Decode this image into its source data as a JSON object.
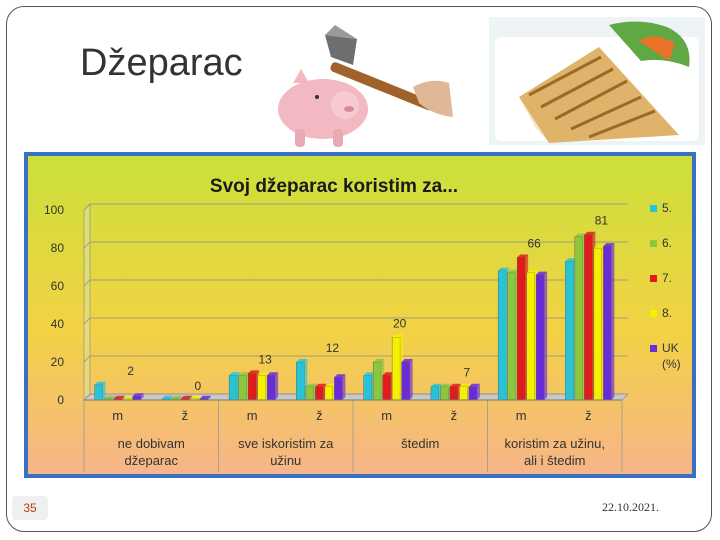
{
  "slide": {
    "title": "Džeparac",
    "slide_number": "35",
    "date": "22.10.2021."
  },
  "colors": {
    "chart_bg_top": "#cbe03a",
    "chart_bg_bottom": "#f7b48a",
    "chart_border": "#3b6fc4",
    "series": [
      "#27c4d8",
      "#8cc63f",
      "#e11b1b",
      "#f4f000",
      "#6a2bd9"
    ]
  },
  "chart_data": {
    "type": "bar",
    "title": "Svoj džeparac koristim za...",
    "ylim": [
      0,
      100
    ],
    "yticks": [
      0,
      20,
      40,
      60,
      80,
      100
    ],
    "grid": true,
    "legend_position": "right",
    "groups": [
      "ne dobivam džeparac",
      "sve iskoristim za užinu",
      "štedim",
      "koristim za užinu, ali i štedim"
    ],
    "categories": [
      "m",
      "ž",
      "m",
      "ž",
      "m",
      "ž",
      "m",
      "ž"
    ],
    "series": [
      {
        "name": "5.",
        "values": [
          8,
          0,
          13,
          20,
          13,
          7,
          68,
          73
        ]
      },
      {
        "name": "6.",
        "values": [
          0,
          0,
          13,
          7,
          20,
          7,
          67,
          86
        ]
      },
      {
        "name": "7.",
        "values": [
          0,
          0,
          14,
          7,
          13,
          7,
          75,
          87
        ]
      },
      {
        "name": "8.",
        "values": [
          0,
          0,
          13,
          7,
          33,
          7,
          67,
          80
        ]
      },
      {
        "name": "UK (%)",
        "values": [
          2,
          0,
          13,
          12,
          20,
          7,
          66,
          81
        ]
      }
    ],
    "data_labels": [
      {
        "category_index": 0,
        "text": "2"
      },
      {
        "category_index": 1,
        "text": "0"
      },
      {
        "category_index": 2,
        "text": "13"
      },
      {
        "category_index": 3,
        "text": "12"
      },
      {
        "category_index": 4,
        "text": "20"
      },
      {
        "category_index": 5,
        "text": "7"
      },
      {
        "category_index": 6,
        "text": "66"
      },
      {
        "category_index": 7,
        "text": "81"
      }
    ]
  }
}
